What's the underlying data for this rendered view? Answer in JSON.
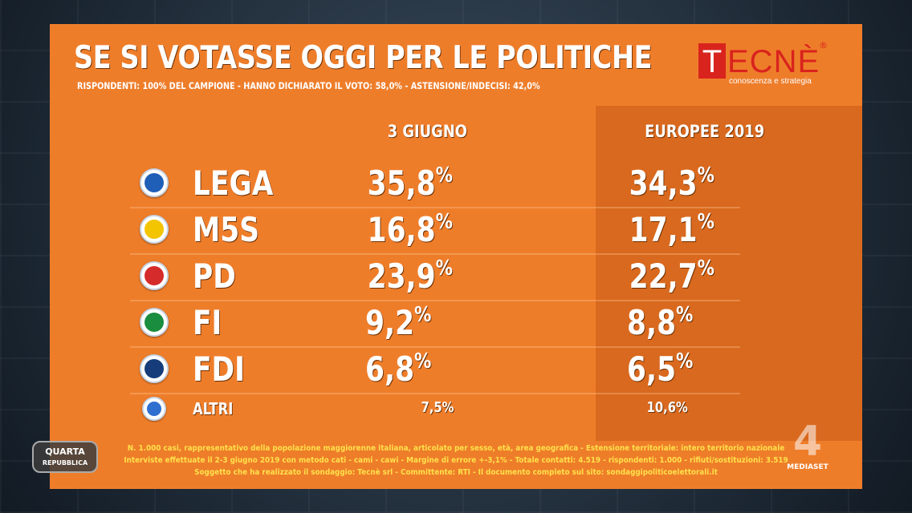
{
  "header": {
    "title": "SE SI VOTASSE OGGI PER LE POLITICHE",
    "subtitle": "RISPONDENTI: 100% DEL CAMPIONE - HANNO DICHIARATO IL VOTO: 58,0% - ASTENSIONE/INDECISI: 42,0%"
  },
  "logo": {
    "letter": "T",
    "rest": "ECNÈ",
    "registered": "®",
    "tagline": "conoscenza e strategia"
  },
  "columns": {
    "current": "3 GIUGNO",
    "previous": "EUROPEE 2019"
  },
  "parties": [
    {
      "name": "LEGA",
      "current": "35,8",
      "previous": "34,3",
      "icon": "lega-logo-icon",
      "color": "#1f5fb8"
    },
    {
      "name": "M5S",
      "current": "16,8",
      "previous": "17,1",
      "icon": "m5s-logo-icon",
      "color": "#f3c400"
    },
    {
      "name": "PD",
      "current": "23,9",
      "previous": "22,7",
      "icon": "pd-logo-icon",
      "color": "#d62b2b"
    },
    {
      "name": "FI",
      "current": "9,2",
      "previous": "8,8",
      "icon": "fi-logo-icon",
      "color": "#1b8d3e"
    },
    {
      "name": "FDI",
      "current": "6,8",
      "previous": "6,5",
      "icon": "fdi-logo-icon",
      "color": "#163d7a"
    },
    {
      "name": "ALTRI",
      "current": "7,5",
      "previous": "10,6",
      "icon": "altri-logo-icon",
      "color": "#2f6fd0"
    }
  ],
  "percent_sign": "%",
  "footer": {
    "line1": "N. 1.000 casi, rappresentativo della popolazione maggiorenne italiana, articolato per sesso, età, area geografica - Estensione territoriale: intero territorio nazionale",
    "line2": "Interviste effettuate il 2-3 giugno 2019 con metodo cati - cami - cawi - Margine di errore +-3,1% - Totale contatti: 4.519 - rispondenti: 1.000 - rifiuti/sostituzioni: 3.519",
    "line3": "Soggetto che ha realizzato il sondaggio: Tecnè srl - Committente: RTI - Il documento completo sul sito: sondaggipoliticoelettorali.it"
  },
  "brands": {
    "show_line1": "QUARTA",
    "show_line2": "REPUBBLICA",
    "channel_number": "4",
    "network": "MEDIASET"
  }
}
